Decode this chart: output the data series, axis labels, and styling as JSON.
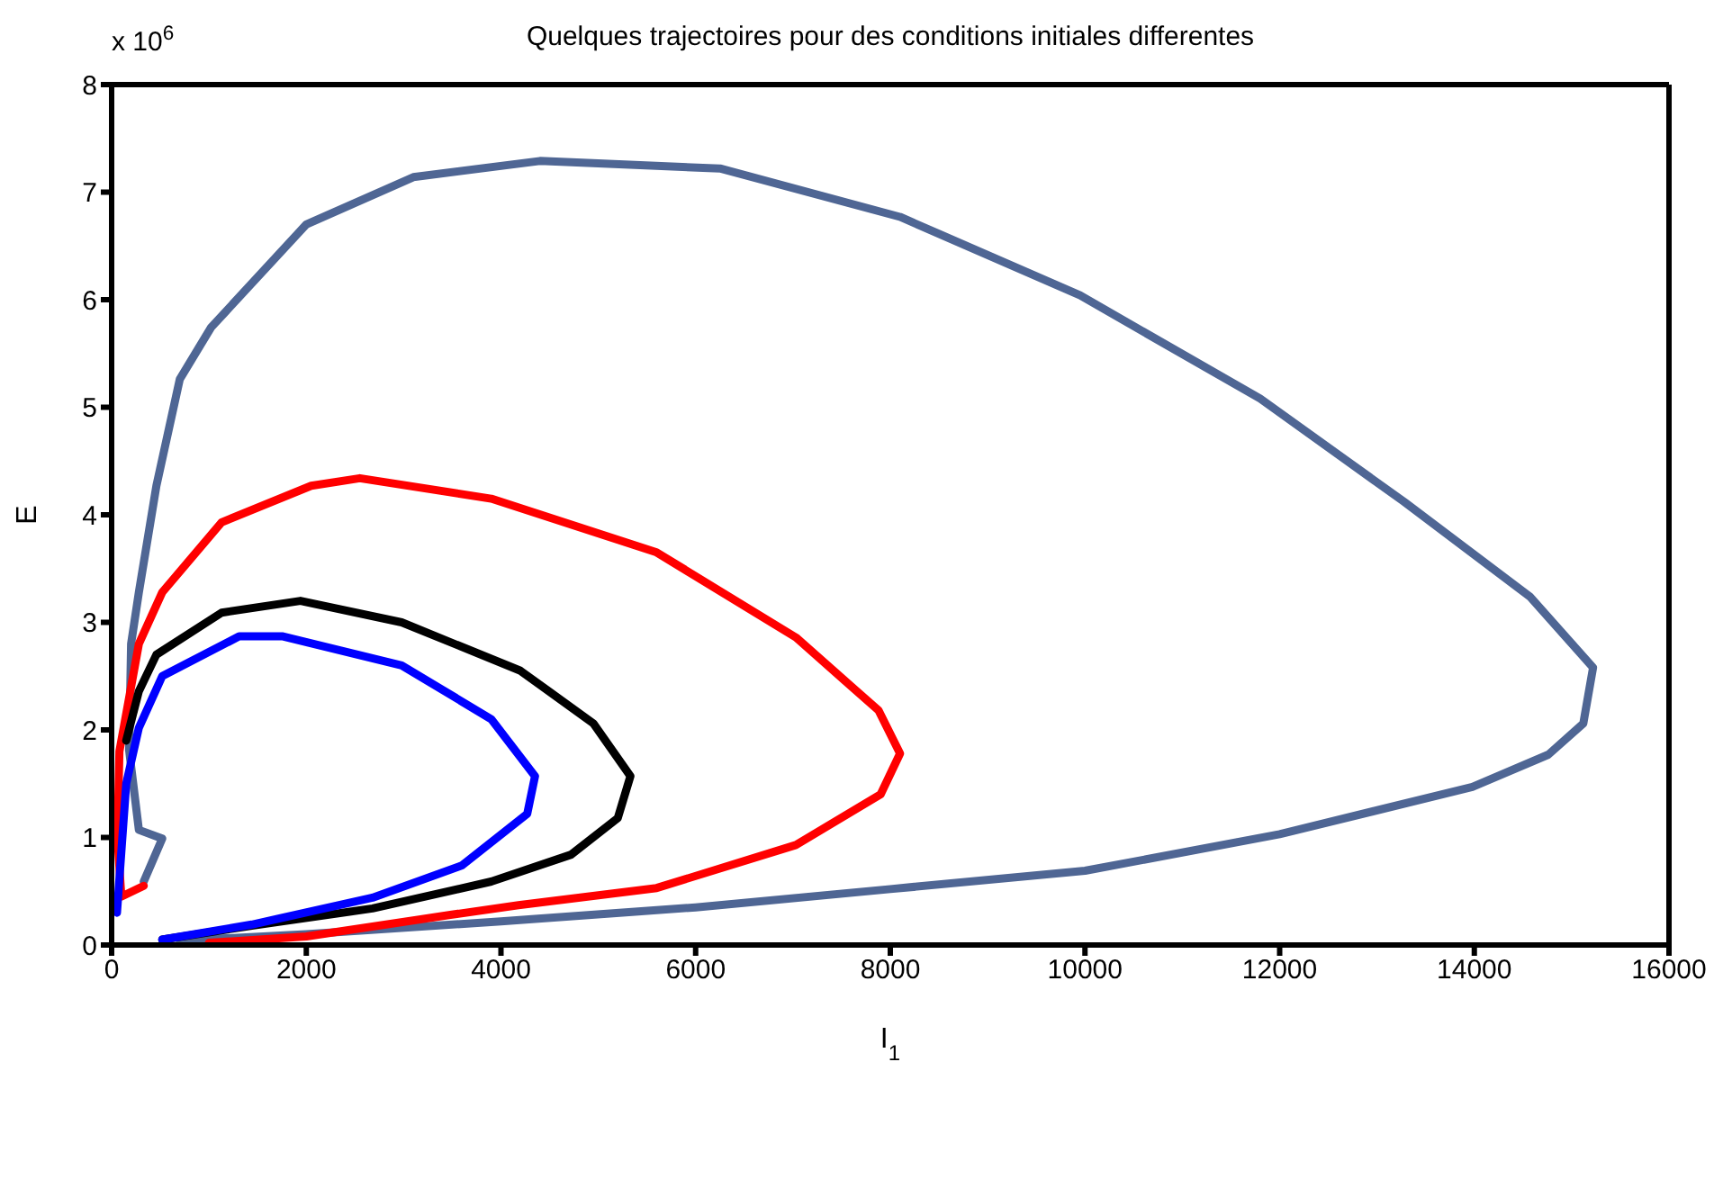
{
  "chart_data": {
    "type": "line",
    "title": "Quelques trajectoires pour des conditions initiales differentes",
    "xlabel": "I$_{1}$",
    "ylabel": "E",
    "annotations": [
      "x 10$^{6}$"
    ],
    "xlim": [
      0,
      16000
    ],
    "xticks": [
      0,
      2000,
      4000,
      6000,
      8000,
      10000,
      12000,
      14000,
      16000
    ],
    "ylim": [
      0,
      8
    ],
    "yticks": [
      0,
      1,
      2,
      3,
      4,
      5,
      6,
      7,
      8
    ],
    "marker": "none",
    "line_style": "solid",
    "series": [
      {
        "color": "#4f6694",
        "x": [
          330,
          520,
          280,
          180,
          200,
          280,
          460,
          700,
          1020,
          2000,
          3100,
          4400,
          6250,
          8100,
          9950,
          11800,
          13280,
          14570,
          15220,
          15120,
          14760,
          13980,
          12000,
          10000,
          8000,
          6000,
          4000,
          2000,
          700
        ],
        "values": [
          0.59,
          0.99,
          1.07,
          1.81,
          2.8,
          3.28,
          4.27,
          5.26,
          5.74,
          6.7,
          7.14,
          7.29,
          7.22,
          6.77,
          6.04,
          5.08,
          4.12,
          3.24,
          2.58,
          2.06,
          1.77,
          1.47,
          1.03,
          0.69,
          0.52,
          0.35,
          0.22,
          0.1,
          0.04
        ]
      },
      {
        "color": "#ff0000",
        "x": [
          330,
          100,
          60,
          80,
          280,
          520,
          1130,
          2050,
          2550,
          3900,
          5600,
          7030,
          7880,
          8100,
          7900,
          7030,
          5600,
          4180,
          3480,
          2000,
          1000
        ],
        "values": [
          0.55,
          0.45,
          1.0,
          1.8,
          2.8,
          3.28,
          3.93,
          4.27,
          4.34,
          4.15,
          3.65,
          2.86,
          2.18,
          1.78,
          1.4,
          0.93,
          0.53,
          0.37,
          0.28,
          0.08,
          0.02
        ]
      },
      {
        "color": "#000000",
        "x": [
          150,
          280,
          460,
          1130,
          1940,
          2980,
          4200,
          4950,
          5330,
          5200,
          4720,
          3900,
          2680,
          1440,
          520
        ],
        "values": [
          1.9,
          2.36,
          2.7,
          3.09,
          3.2,
          3.0,
          2.55,
          2.06,
          1.57,
          1.18,
          0.84,
          0.59,
          0.34,
          0.18,
          0.05
        ]
      },
      {
        "color": "#0000ff",
        "x": [
          55,
          150,
          280,
          520,
          1310,
          1760,
          2980,
          3900,
          4350,
          4270,
          3600,
          2680,
          1440,
          520
        ],
        "values": [
          0.3,
          1.5,
          2.02,
          2.5,
          2.87,
          2.87,
          2.6,
          2.1,
          1.57,
          1.22,
          0.74,
          0.44,
          0.19,
          0.05
        ]
      }
    ]
  }
}
